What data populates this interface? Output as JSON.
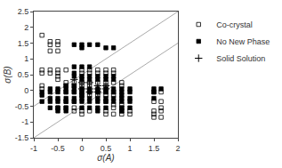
{
  "chart_data": {
    "type": "scatter",
    "title": "",
    "xlabel": "σ(A)",
    "ylabel": "σ(B)",
    "xlim": [
      -1,
      2
    ],
    "ylim": [
      -1.5,
      2.5
    ],
    "xticks": [
      -1,
      -0.5,
      0,
      0.5,
      1,
      1.5,
      2
    ],
    "yticks": [
      -1.5,
      -1,
      -0.5,
      0,
      0.5,
      1,
      1.5,
      2,
      2.5
    ],
    "grid": false,
    "legend": "upper right",
    "series": [
      {
        "type": "line",
        "color": "#aaaaaa",
        "x": [
          -1,
          2
        ],
        "values": [
          -0.5,
          2.5
        ]
      },
      {
        "type": "line",
        "color": "#aaaaaa",
        "x": [
          -1,
          2
        ],
        "values": [
          -1.5,
          1.5
        ]
      },
      {
        "name": "Co-crystal",
        "type": "scatter",
        "marker": "square-open",
        "color": "#000000",
        "x": [
          -0.83,
          -0.66,
          -0.66,
          -0.5,
          -0.5,
          -0.5,
          -0.66,
          -0.83,
          -0.83,
          -0.66,
          -0.66,
          -0.5,
          -0.5,
          -0.5,
          -0.5,
          -0.33,
          -0.33,
          -0.33,
          -0.16,
          -0.16,
          0.0,
          0.0,
          0.0,
          0.0,
          0.16,
          0.16,
          0.16,
          0.16,
          0.33,
          0.33,
          0.33,
          0.5,
          0.5,
          0.5,
          0.5,
          0.66,
          0.66,
          0.66,
          -0.33,
          -0.16,
          0.0,
          0.0,
          0.16,
          0.16,
          0.33,
          0.33,
          0.5,
          0.5,
          0.66,
          0.66,
          0.66,
          0.66,
          0.83,
          0.83,
          1.5,
          1.65,
          1.5,
          1.65,
          1.5,
          1.65,
          1.5,
          -0.5,
          -0.33,
          -0.16,
          -0.16,
          0.0,
          0.0,
          0.16,
          0.5,
          0.5,
          0.66,
          0.83,
          0.83,
          1.0,
          1.0,
          -0.83,
          -0.83,
          -0.33,
          -0.16,
          0.83,
          0.83,
          0.5,
          1.65,
          1.5,
          1.65
        ],
        "values": [
          1.75,
          1.55,
          1.45,
          1.45,
          1.55,
          1.25,
          1.25,
          0.65,
          0.55,
          0.65,
          0.55,
          0.65,
          0.55,
          0.45,
          0.35,
          0.65,
          0.25,
          0.15,
          0.25,
          0.15,
          0.55,
          0.65,
          0.25,
          0.15,
          0.65,
          0.55,
          0.25,
          0.15,
          0.65,
          0.55,
          0.25,
          0.65,
          0.55,
          0.25,
          0.15,
          0.65,
          0.55,
          0.25,
          -0.05,
          -0.05,
          -0.05,
          -0.15,
          -0.05,
          -0.15,
          -0.05,
          -0.15,
          -0.05,
          -0.15,
          -0.05,
          -0.15,
          -0.45,
          -0.55,
          -0.45,
          -0.55,
          -0.05,
          -0.05,
          -0.35,
          -0.35,
          -0.65,
          -0.65,
          -0.75,
          -0.55,
          -0.55,
          -0.55,
          -0.65,
          -0.65,
          -0.75,
          -0.65,
          -0.65,
          -0.75,
          -0.75,
          -0.65,
          -0.75,
          -0.65,
          -0.75,
          0.05,
          0.15,
          -0.35,
          -0.35,
          0.25,
          0.15,
          -0.35,
          -0.55,
          -0.85,
          -0.85
        ]
      },
      {
        "name": "No New Phase",
        "type": "scatter",
        "marker": "square",
        "color": "#000000",
        "x": [
          -0.16,
          0.0,
          0.16,
          0.0,
          0.33,
          0.5,
          0.66,
          -0.16,
          0.0,
          0.16,
          -0.16,
          -0.16,
          0.0,
          0.0,
          0.16,
          0.16,
          0.33,
          0.33,
          0.5,
          0.5,
          0.66,
          0.66,
          -0.33,
          -0.33,
          -0.33,
          -0.16,
          -0.16,
          -0.16,
          0.0,
          0.0,
          0.0,
          0.16,
          0.16,
          0.33,
          0.33,
          0.5,
          0.5,
          0.66,
          0.66,
          0.83,
          0.83,
          0.83,
          -0.5,
          -0.5,
          -0.5,
          -0.5,
          -0.33,
          -0.33,
          -0.16,
          -0.16,
          0.0,
          0.0,
          0.16,
          0.16,
          0.33,
          0.33,
          0.5,
          0.5,
          0.66,
          0.66,
          0.83,
          0.83,
          -0.5,
          -0.5,
          -0.33,
          -0.33,
          0.0,
          0.16,
          0.33,
          0.33,
          0.5,
          -0.83,
          -0.83,
          1.0,
          1.0,
          1.5,
          1.5,
          1.65,
          1.5,
          0.83,
          0.83,
          1.0,
          1.0,
          1.0,
          -0.66,
          -0.66,
          -0.66,
          -0.66,
          -0.66,
          -0.83
        ],
        "values": [
          1.45,
          1.45,
          1.45,
          1.35,
          1.45,
          1.35,
          1.35,
          0.75,
          0.75,
          0.75,
          0.55,
          0.45,
          0.45,
          0.35,
          0.45,
          0.35,
          0.45,
          0.35,
          0.45,
          0.35,
          0.45,
          0.35,
          0.05,
          0.15,
          -0.05,
          0.05,
          -0.05,
          0.15,
          0.05,
          -0.05,
          -0.15,
          0.05,
          -0.05,
          0.05,
          -0.05,
          0.05,
          -0.05,
          0.05,
          -0.05,
          0.05,
          -0.05,
          -0.15,
          0.05,
          -0.05,
          -0.25,
          -0.35,
          -0.25,
          -0.35,
          -0.25,
          -0.35,
          -0.25,
          -0.35,
          -0.25,
          -0.35,
          -0.25,
          -0.35,
          -0.25,
          -0.35,
          -0.25,
          -0.35,
          -0.25,
          -0.35,
          -0.55,
          -0.65,
          -0.55,
          -0.65,
          -0.55,
          -0.55,
          -0.55,
          -0.65,
          -0.55,
          -0.05,
          -0.15,
          0.05,
          -0.05,
          0.05,
          -0.05,
          0.05,
          -0.25,
          -0.55,
          -0.65,
          -0.25,
          -0.35,
          -0.55,
          0.05,
          -0.05,
          -0.25,
          -0.35,
          -0.55,
          -0.35
        ]
      },
      {
        "name": "Solid Solution",
        "type": "scatter",
        "marker": "plus",
        "color": "#000000",
        "x": [
          -0.16,
          0.0,
          0.16,
          0.33,
          0.0,
          0.16,
          0.33,
          0.5,
          0.16,
          0.33,
          0.5
        ],
        "values": [
          0.35,
          0.25,
          0.25,
          0.15,
          0.05,
          0.05,
          0.05,
          0.15,
          -0.05,
          -0.05,
          0.05
        ]
      }
    ]
  }
}
